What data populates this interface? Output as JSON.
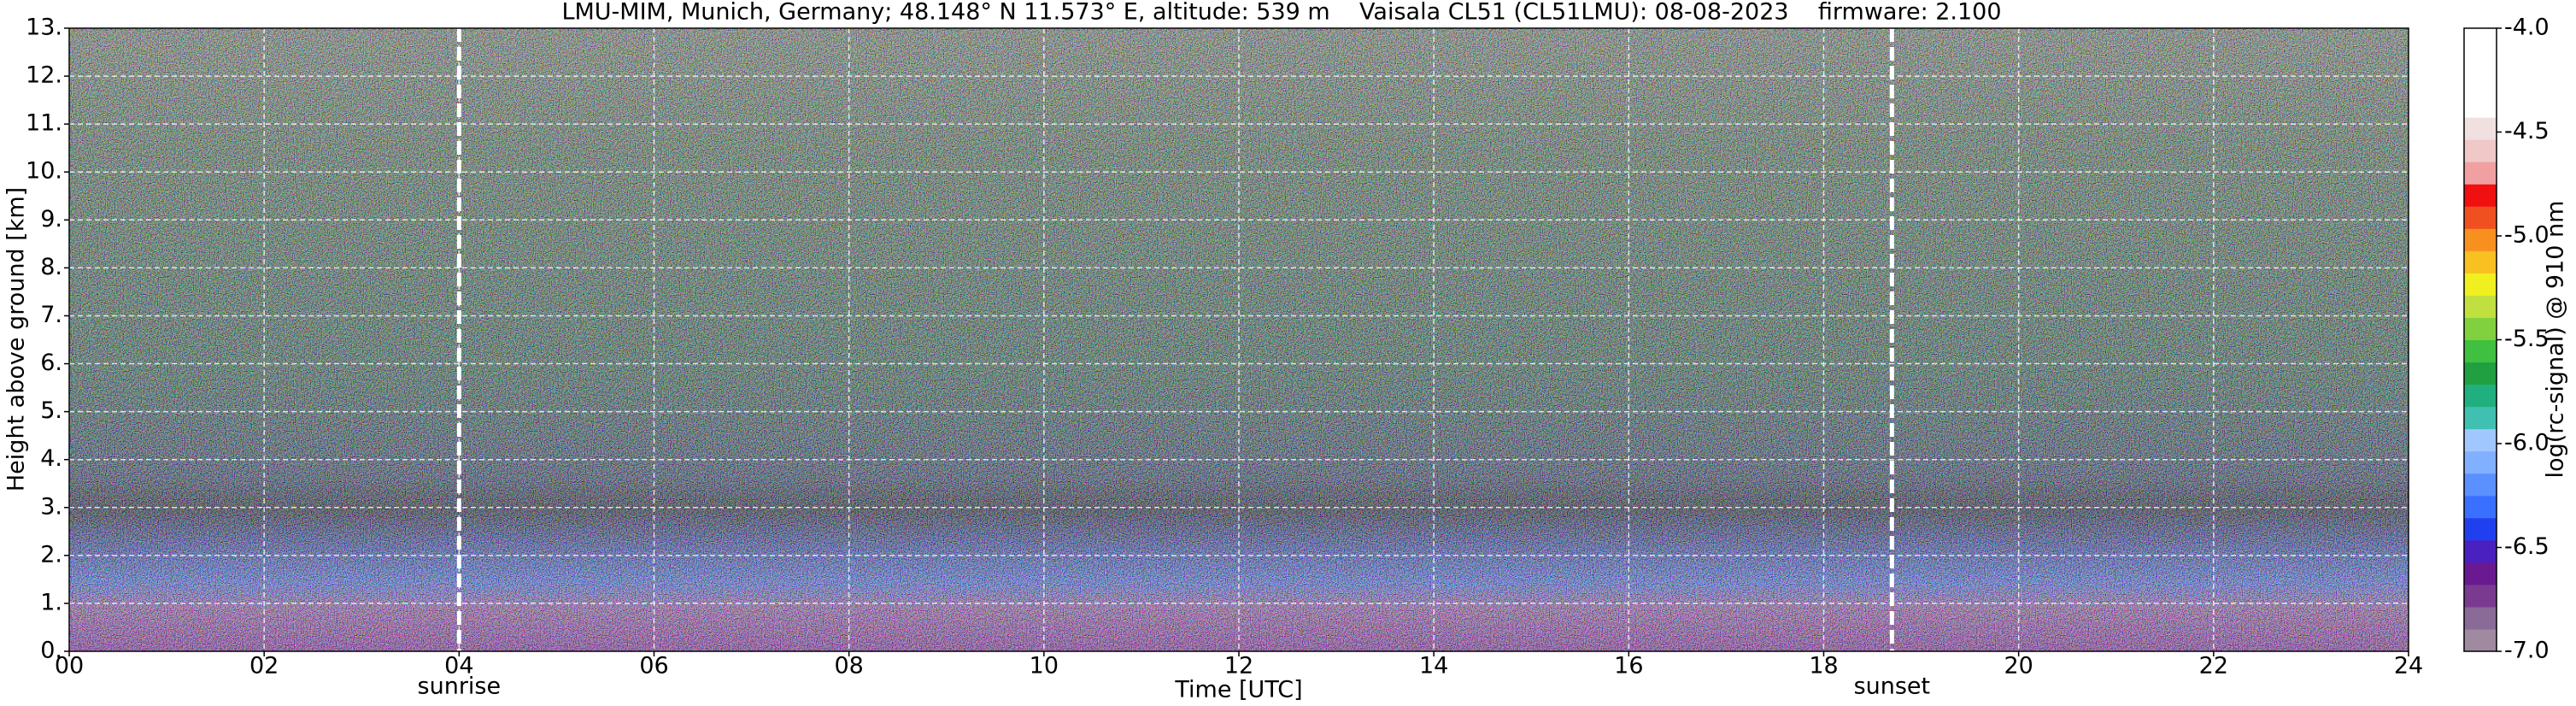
{
  "chart_data": {
    "type": "heatmap",
    "title": "LMU-MIM, Munich, Germany; 48.148° N 11.573° E, altitude: 539 m    Vaisala CL51 (CL51LMU): 08-08-2023    firmware: 2.100",
    "x_label": "Time [UTC]",
    "y_label": "Height above ground [km]",
    "colorbar_label": "log(rc-signal) @ 910 nm",
    "xlim": [
      0,
      24
    ],
    "xticks": [
      {
        "value": 0,
        "label": "00"
      },
      {
        "value": 2,
        "label": "02"
      },
      {
        "value": 4,
        "label": "04"
      },
      {
        "value": 6,
        "label": "06"
      },
      {
        "value": 8,
        "label": "08"
      },
      10,
      12,
      14,
      16,
      18,
      20,
      22,
      24
    ],
    "ylim": [
      0,
      13
    ],
    "yticks": [
      {
        "value": 0,
        "label": "0."
      },
      {
        "value": 1,
        "label": "1."
      },
      {
        "value": 2,
        "label": "2."
      },
      {
        "value": 3,
        "label": "3."
      },
      {
        "value": 4,
        "label": "4."
      },
      {
        "value": 5,
        "label": "5."
      },
      {
        "value": 6,
        "label": "6."
      },
      {
        "value": 7,
        "label": "7."
      },
      {
        "value": 8,
        "label": "8."
      },
      {
        "value": 9,
        "label": "9."
      },
      {
        "value": 10,
        "label": "10."
      },
      {
        "value": 11,
        "label": "11."
      },
      {
        "value": 12,
        "label": "12."
      },
      {
        "value": 13,
        "label": "13."
      }
    ],
    "clim": [
      -7,
      -4
    ],
    "cticks": [
      {
        "value": -7,
        "label": "-7.0"
      },
      -6.5,
      {
        "value": -6,
        "label": "-6.0"
      },
      -5.5,
      {
        "value": -5,
        "label": "-5.0"
      },
      -4.5,
      {
        "value": -4,
        "label": "-4.0"
      }
    ],
    "colormap": [
      "#a08aa0",
      "#8a6a96",
      "#7a3a90",
      "#6a1a90",
      "#4a20c0",
      "#2040f0",
      "#3a70ff",
      "#5a90ff",
      "#80b0ff",
      "#a0c8ff",
      "#40c0b0",
      "#20b080",
      "#20a040",
      "#40c040",
      "#80d040",
      "#c0e040",
      "#f0f020",
      "#f8c020",
      "#f89020",
      "#f05020",
      "#f01010",
      "#f0a0a0",
      "#f0c8c8",
      "#f0e0e0",
      "#ffffff",
      "#ffffff",
      "#ffffff",
      "#ffffff"
    ],
    "grid": true,
    "annotations": [
      {
        "text": "sunrise",
        "x": 4.0
      },
      {
        "text": "sunset",
        "x": 18.7
      }
    ]
  }
}
